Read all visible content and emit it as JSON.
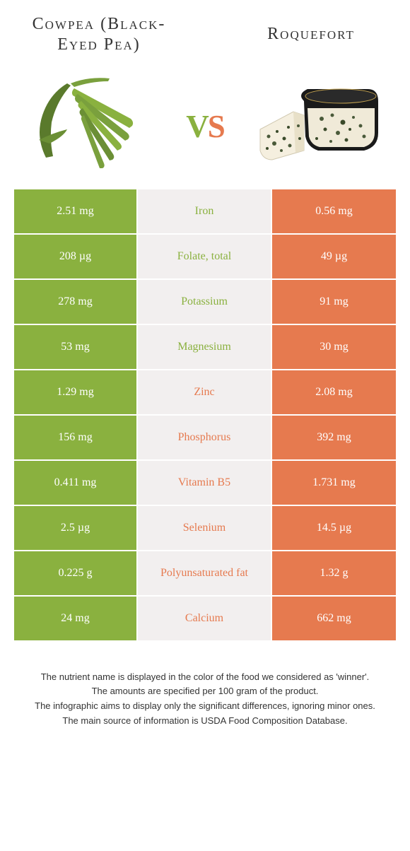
{
  "colors": {
    "green": "#8ab13f",
    "orange": "#e67a4f",
    "mid_bg": "#f2efef",
    "text": "#333333"
  },
  "left": {
    "title": "Cowpea (Black-Eyed Pea)"
  },
  "right": {
    "title": "Roquefort"
  },
  "vs": {
    "v": "v",
    "s": "s"
  },
  "rows": [
    {
      "left": "2.51 mg",
      "mid": "Iron",
      "right": "0.56 mg",
      "winner": "left"
    },
    {
      "left": "208 µg",
      "mid": "Folate, total",
      "right": "49 µg",
      "winner": "left"
    },
    {
      "left": "278 mg",
      "mid": "Potassium",
      "right": "91 mg",
      "winner": "left"
    },
    {
      "left": "53 mg",
      "mid": "Magnesium",
      "right": "30 mg",
      "winner": "left"
    },
    {
      "left": "1.29 mg",
      "mid": "Zinc",
      "right": "2.08 mg",
      "winner": "right"
    },
    {
      "left": "156 mg",
      "mid": "Phosphorus",
      "right": "392 mg",
      "winner": "right"
    },
    {
      "left": "0.411 mg",
      "mid": "Vitamin B5",
      "right": "1.731 mg",
      "winner": "right"
    },
    {
      "left": "2.5 µg",
      "mid": "Selenium",
      "right": "14.5 µg",
      "winner": "right"
    },
    {
      "left": "0.225 g",
      "mid": "Polyunsaturated fat",
      "right": "1.32 g",
      "winner": "right"
    },
    {
      "left": "24 mg",
      "mid": "Calcium",
      "right": "662 mg",
      "winner": "right"
    }
  ],
  "footer": {
    "l1": "The nutrient name is displayed in the color of the food we considered as 'winner'.",
    "l2": "The amounts are specified per 100 gram of the product.",
    "l3": "The infographic aims to display only the significant differences, ignoring minor ones.",
    "l4": "The main source of information is USDA Food Composition Database."
  }
}
